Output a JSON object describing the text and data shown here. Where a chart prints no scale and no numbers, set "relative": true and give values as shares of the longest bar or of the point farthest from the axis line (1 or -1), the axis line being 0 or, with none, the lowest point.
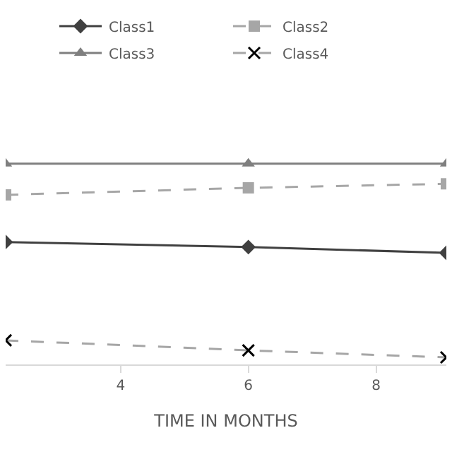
{
  "chart_data": {
    "type": "line",
    "relative": true,
    "xlabel": "TIME IN MONTHS",
    "x": [
      2.2,
      6,
      9.1
    ],
    "xlim": [
      2.2,
      9.1
    ],
    "xticks": [
      4,
      6,
      8
    ],
    "legend": "top",
    "tick_labels": "x",
    "series": [
      {
        "name": "Class1",
        "color": "#404040",
        "marker": "diamond",
        "line_style": "solid",
        "values": [
          0.61,
          0.585,
          0.556
        ]
      },
      {
        "name": "Class2",
        "color": "#a6a6a6",
        "marker": "square",
        "line_style": "dashed",
        "values": [
          0.845,
          0.88,
          0.9
        ]
      },
      {
        "name": "Class3",
        "color": "#7f7f7f",
        "marker": "triangle",
        "line_style": "solid",
        "values": [
          1,
          1,
          1
        ]
      },
      {
        "name": "Class4",
        "color": "#a6a6a6",
        "marker": "cross",
        "line_style": "dashed",
        "values": [
          0.12,
          0.07,
          0.035
        ]
      }
    ]
  }
}
